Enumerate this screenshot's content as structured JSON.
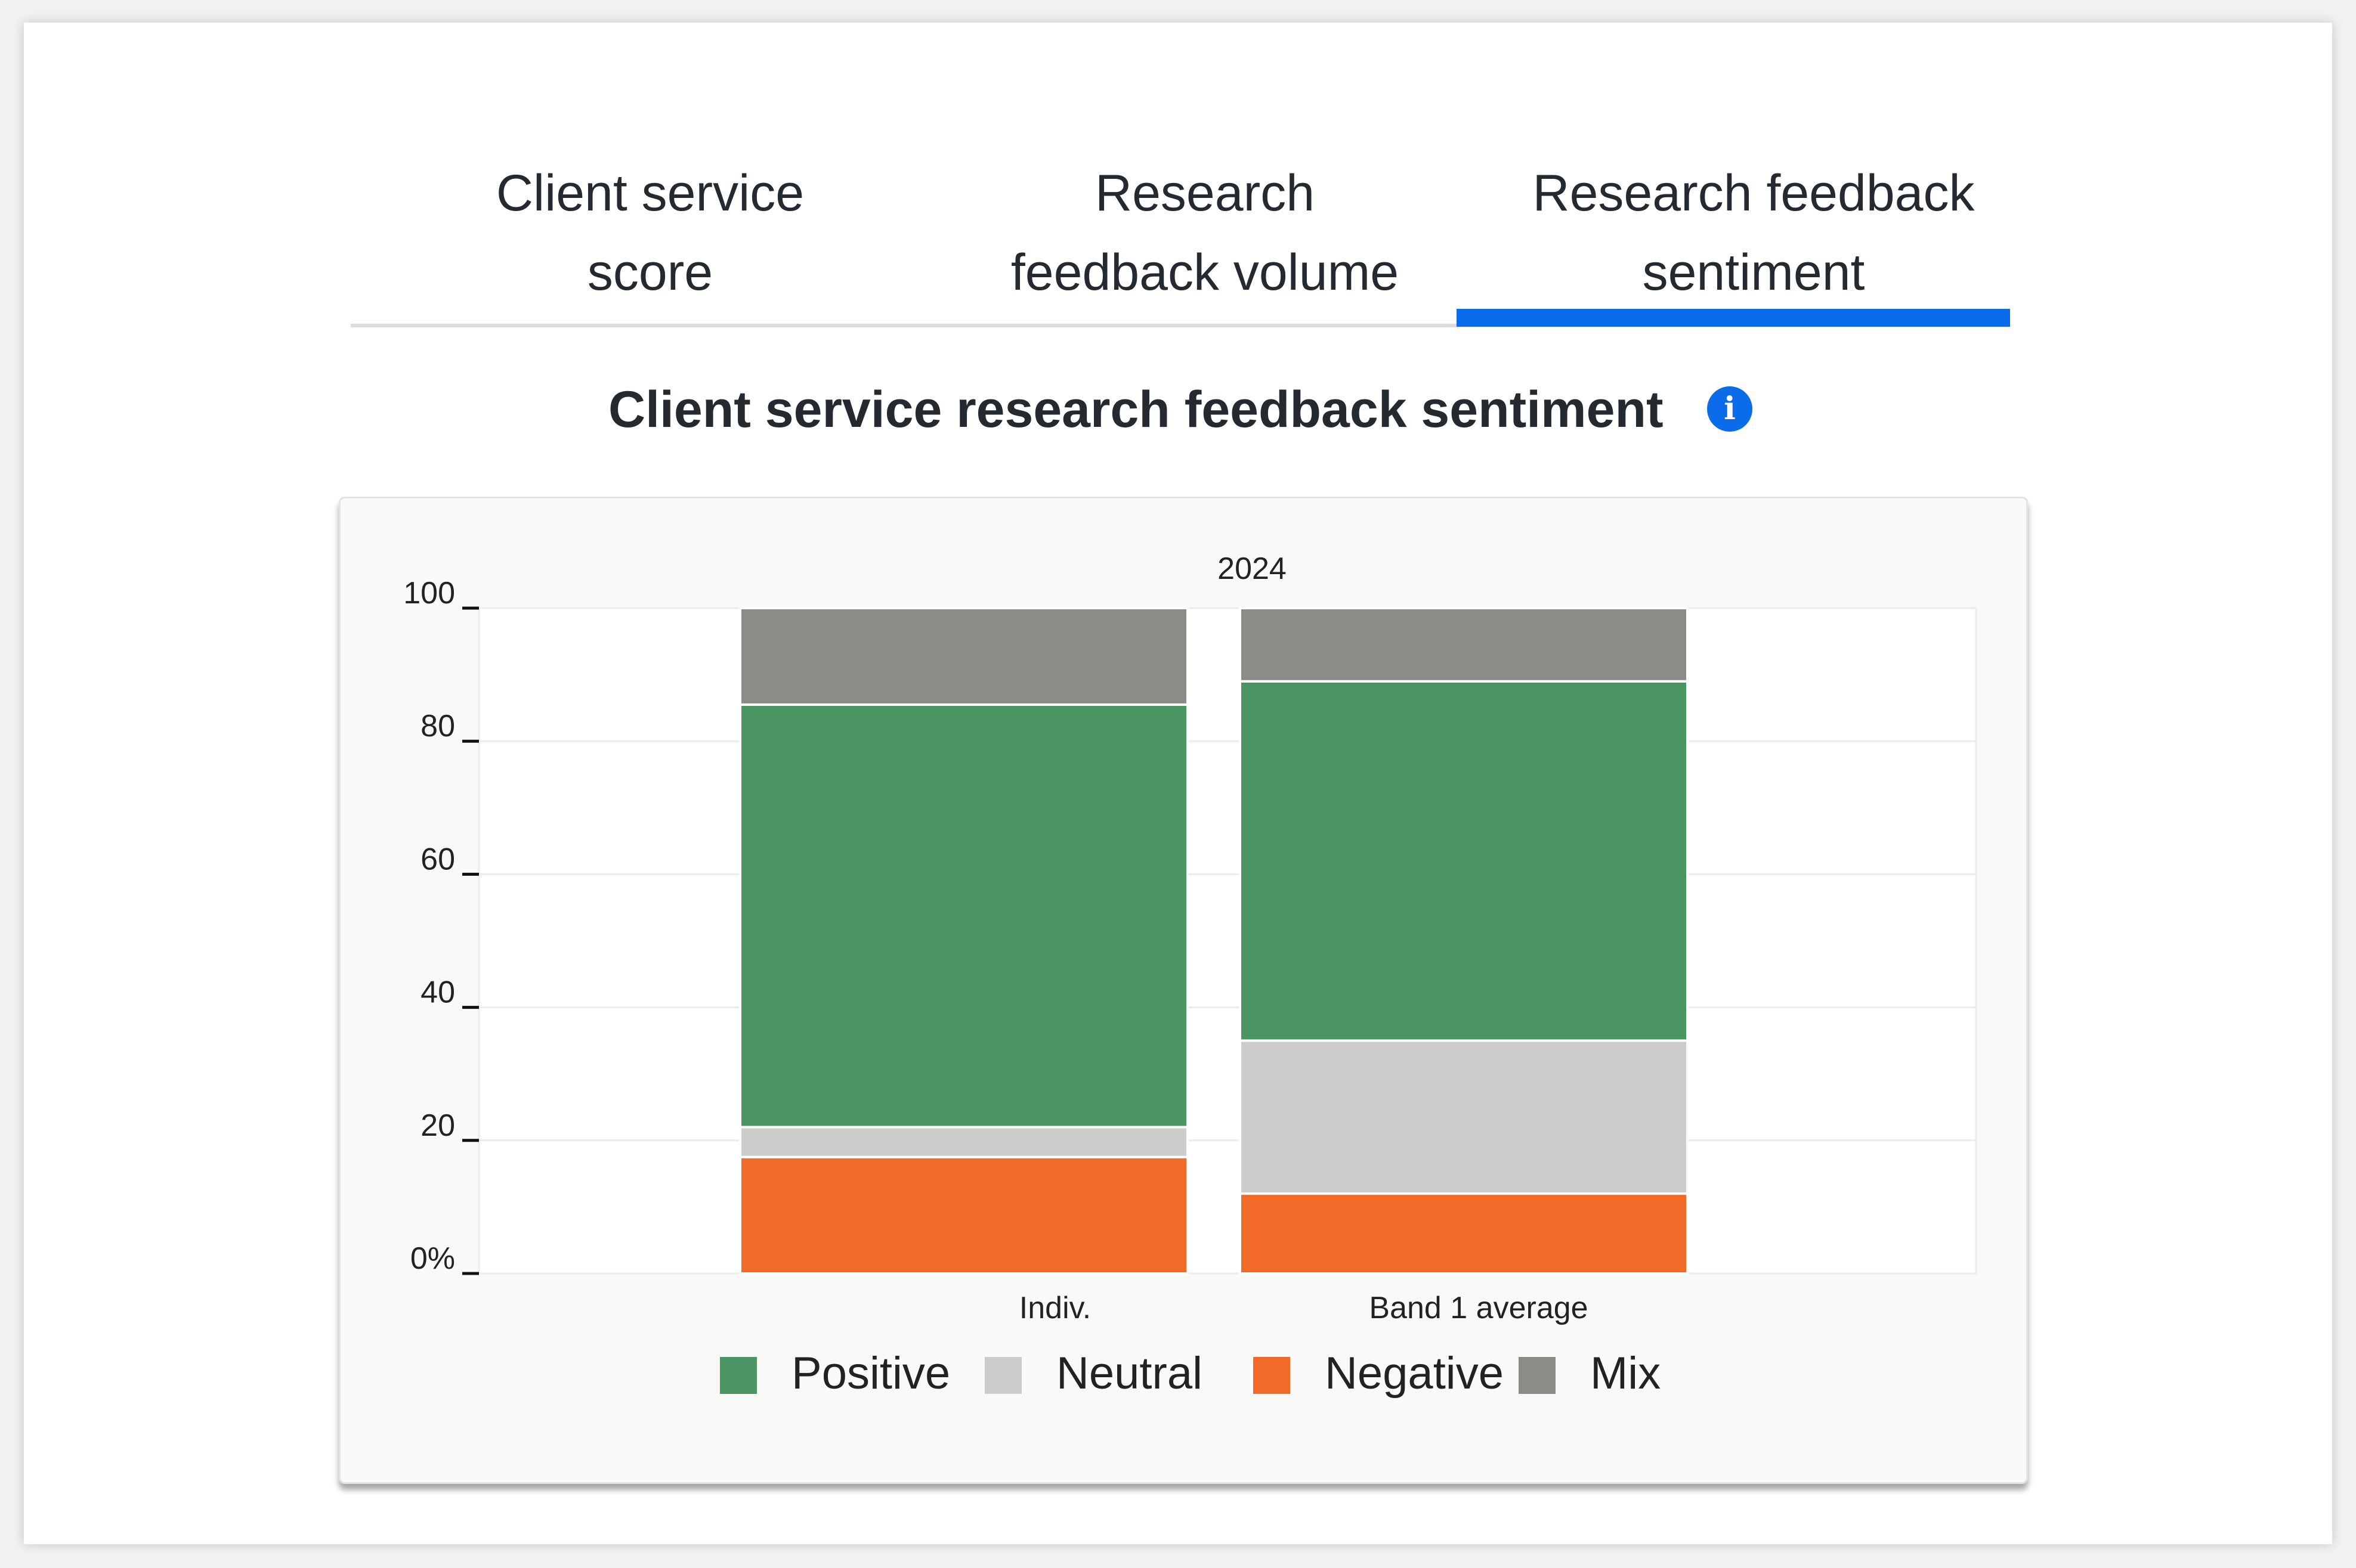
{
  "tabs": [
    {
      "line1": "Client service",
      "line2": "score"
    },
    {
      "line1": "Research",
      "line2": "feedback volume"
    },
    {
      "line1": "Research feedback",
      "line2": "sentiment"
    }
  ],
  "active_tab_index": 2,
  "accent_color": "#0a6ce8",
  "section": {
    "title": "Client service research feedback sentiment",
    "info_icon": "info-icon"
  },
  "chart_data": {
    "type": "bar",
    "stacked": true,
    "title": "2024",
    "categories": [
      "Indiv.",
      "Band 1 average"
    ],
    "ylim": [
      0,
      100
    ],
    "yticks": [
      "0%",
      "20",
      "40",
      "60",
      "80",
      "100"
    ],
    "grid": true,
    "legend_position": "bottom",
    "series": [
      {
        "name": "Negative",
        "color": "#f26a27",
        "values": [
          17.5,
          12
        ]
      },
      {
        "name": "Neutral",
        "color": "#cccccb",
        "values": [
          4.5,
          23
        ]
      },
      {
        "name": "Positive",
        "color": "#4a9562",
        "values": [
          63.5,
          54
        ]
      },
      {
        "name": "Mix",
        "color": "#8c8c86",
        "values": [
          14.5,
          11
        ]
      }
    ],
    "legend_order": [
      "Positive",
      "Neutral",
      "Negative",
      "Mix"
    ]
  }
}
